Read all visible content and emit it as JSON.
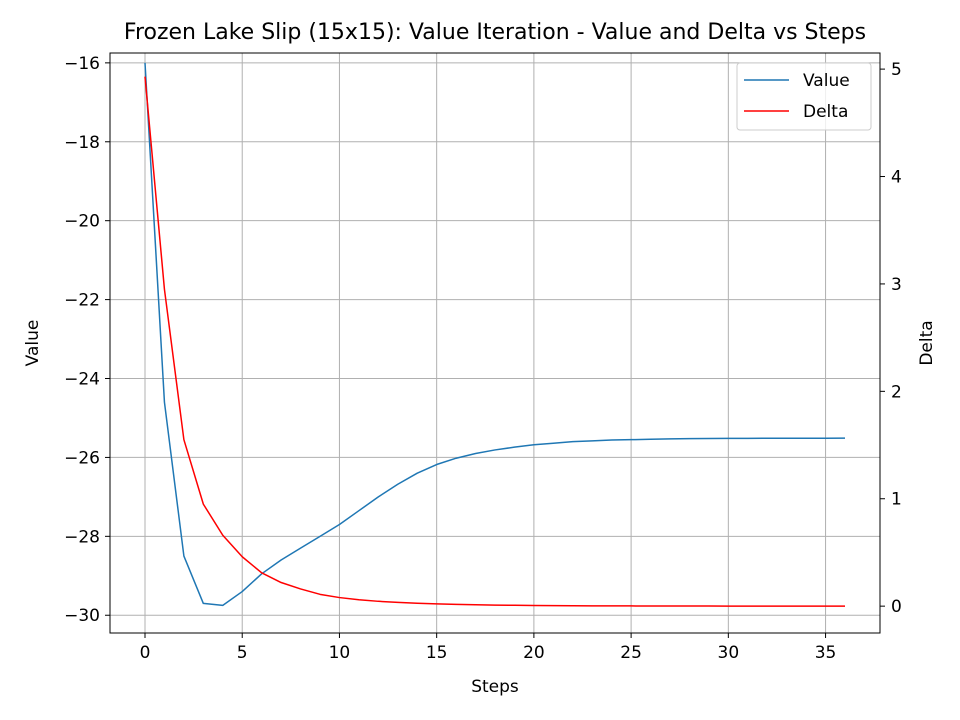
{
  "chart_data": {
    "type": "line",
    "title": "Frozen Lake Slip (15x15): Value Iteration - Value and Delta vs Steps",
    "xlabel": "Steps",
    "ylabel": "Value",
    "y2label": "Delta",
    "xlim": [
      -1.8,
      37.8
    ],
    "ylim": [
      -30.45,
      -15.75
    ],
    "y2lim": [
      -0.25,
      5.15
    ],
    "xticks": [
      0,
      5,
      10,
      15,
      20,
      25,
      30,
      35
    ],
    "yticks": [
      -16,
      -18,
      -20,
      -22,
      -24,
      -26,
      -28,
      -30
    ],
    "y2ticks": [
      0,
      1,
      2,
      3,
      4,
      5
    ],
    "grid": true,
    "legend_position": "top-right",
    "x": [
      0,
      1,
      2,
      3,
      4,
      5,
      6,
      7,
      8,
      9,
      10,
      11,
      12,
      13,
      14,
      15,
      16,
      17,
      18,
      19,
      20,
      21,
      22,
      23,
      24,
      25,
      26,
      27,
      28,
      29,
      30,
      31,
      32,
      33,
      34,
      35,
      36
    ],
    "series": [
      {
        "name": "Value",
        "axis": "left",
        "color": "#1f77b4",
        "values": [
          -16.0,
          -24.6,
          -28.5,
          -29.7,
          -29.75,
          -29.4,
          -28.95,
          -28.6,
          -28.3,
          -28.0,
          -27.7,
          -27.35,
          -27.0,
          -26.68,
          -26.4,
          -26.18,
          -26.02,
          -25.9,
          -25.81,
          -25.74,
          -25.68,
          -25.64,
          -25.6,
          -25.58,
          -25.56,
          -25.55,
          -25.54,
          -25.53,
          -25.525,
          -25.52,
          -25.518,
          -25.516,
          -25.515,
          -25.514,
          -25.513,
          -25.513,
          -25.512
        ]
      },
      {
        "name": "Delta",
        "axis": "right",
        "color": "#ff0000",
        "values": [
          4.93,
          2.95,
          1.55,
          0.95,
          0.66,
          0.46,
          0.31,
          0.22,
          0.16,
          0.11,
          0.08,
          0.06,
          0.045,
          0.035,
          0.027,
          0.021,
          0.016,
          0.013,
          0.01,
          0.008,
          0.006,
          0.005,
          0.004,
          0.003,
          0.002,
          0.002,
          0.0015,
          0.001,
          0.001,
          0.0008,
          0.0006,
          0.0005,
          0.0004,
          0.0003,
          0.0003,
          0.0002,
          0.0002
        ]
      }
    ]
  }
}
